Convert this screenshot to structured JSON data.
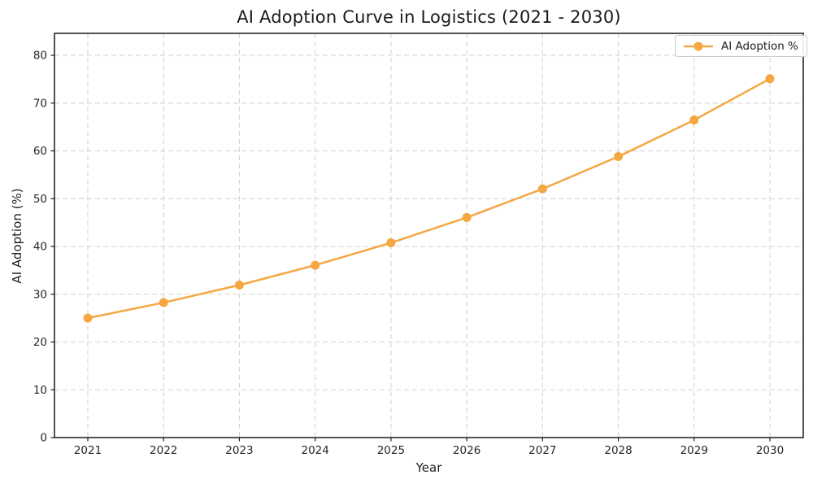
{
  "chart_data": {
    "type": "line",
    "title": "AI Adoption Curve in Logistics (2021 - 2030)",
    "xlabel": "Year",
    "ylabel": "AI Adoption (%)",
    "categories": [
      "2021",
      "2022",
      "2023",
      "2024",
      "2025",
      "2026",
      "2027",
      "2028",
      "2029",
      "2030"
    ],
    "series": [
      {
        "name": "AI Adoption %",
        "values": [
          25.0,
          28.25,
          31.92,
          36.07,
          40.76,
          46.06,
          52.04,
          58.81,
          66.46,
          75.1
        ],
        "marker": "circle"
      }
    ],
    "ylim": [
      0,
      84.6
    ],
    "yticks": [
      0,
      10,
      20,
      30,
      40,
      50,
      60,
      70,
      80
    ],
    "grid": true,
    "grid_style": "dashed",
    "legend": {
      "position": "upper-right",
      "label": "AI Adoption %"
    }
  },
  "colors": {
    "line": "#F5A742",
    "grid": "#d4d4d4",
    "axis": "#1a1a1a",
    "tick_text": "#262626",
    "title_text": "#1a1a1a",
    "background": "#ffffff",
    "legend_border": "#cccccc"
  }
}
